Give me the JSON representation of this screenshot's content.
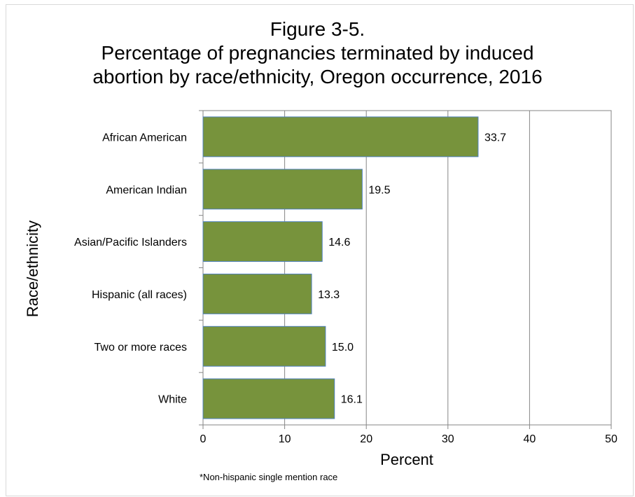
{
  "chart_data": {
    "type": "bar",
    "orientation": "horizontal",
    "title": [
      "Figure 3-5.",
      "Percentage of pregnancies terminated by induced",
      "abortion by race/ethnicity, Oregon occurrence, 2016"
    ],
    "xlabel": "Percent",
    "ylabel": "Race/ethnicity",
    "categories": [
      "African American",
      "American Indian",
      "Asian/Pacific Islanders",
      "Hispanic (all races)",
      "Two or more races",
      "White"
    ],
    "values": [
      33.7,
      19.5,
      14.6,
      13.3,
      15.0,
      16.1
    ],
    "value_labels": [
      "33.7",
      "19.5",
      "14.6",
      "13.3",
      "15.0",
      "16.1"
    ],
    "xlim": [
      0,
      50
    ],
    "xticks": [
      0,
      10,
      20,
      30,
      40,
      50
    ],
    "grid": "vertical",
    "bar_color": "#77933c",
    "bar_edge_color": "#4f81bd",
    "footnote": "*Non-hispanic single mention race"
  }
}
